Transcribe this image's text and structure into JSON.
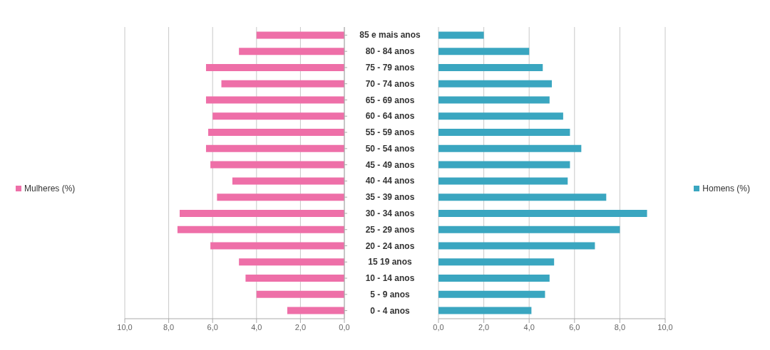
{
  "chart_data": [
    {
      "type": "bar",
      "orientation": "horizontal",
      "categories": [
        "85 e mais anos",
        "80 - 84 anos",
        "75 - 79 anos",
        "70 - 74 anos",
        "65 - 69 anos",
        "60 - 64 anos",
        "55 - 59 anos",
        "50 - 54 anos",
        "45 - 49 anos",
        "40 - 44 anos",
        "35 - 39 anos",
        "30 - 34 anos",
        "25 - 29 anos",
        "20 - 24 anos",
        "15   19 anos",
        "10 - 14 anos",
        "5 - 9 anos",
        "0 - 4 anos"
      ],
      "series": [
        {
          "name": "Mulheres (%)",
          "color": "#ee6fa8",
          "values": [
            4.0,
            4.8,
            6.3,
            5.6,
            6.3,
            6.0,
            6.2,
            6.3,
            6.1,
            5.1,
            5.8,
            7.5,
            7.6,
            6.1,
            4.8,
            4.5,
            4.0,
            2.6
          ]
        }
      ],
      "xlim": [
        10,
        0
      ],
      "xticks": [
        {
          "value": 10,
          "label": "10,0"
        },
        {
          "value": 8,
          "label": "8,0"
        },
        {
          "value": 6,
          "label": "6,0"
        },
        {
          "value": 4,
          "label": "4,0"
        },
        {
          "value": 2,
          "label": "2,0"
        },
        {
          "value": 0,
          "label": "0,0"
        }
      ],
      "grid": "x",
      "legend": "left"
    },
    {
      "type": "bar",
      "orientation": "horizontal",
      "categories": [
        null,
        null,
        null,
        null,
        null,
        null,
        null,
        null,
        null,
        null,
        null,
        null,
        null,
        null,
        null,
        null,
        null,
        null
      ],
      "series": [
        {
          "name": "Homens (%)",
          "color": "#3aa6c0",
          "values": [
            2.0,
            4.0,
            4.6,
            5.0,
            4.9,
            5.5,
            5.8,
            6.3,
            5.8,
            5.7,
            7.4,
            9.2,
            8.0,
            6.9,
            5.1,
            4.9,
            4.7,
            4.1
          ]
        }
      ],
      "xlim": [
        0,
        10
      ],
      "xticks": [
        {
          "value": 0,
          "label": "0,0"
        },
        {
          "value": 2,
          "label": "2,0"
        },
        {
          "value": 4,
          "label": "4,0"
        },
        {
          "value": 6,
          "label": "6,0"
        },
        {
          "value": 8,
          "label": "8,0"
        },
        {
          "value": 10,
          "label": "10,0"
        }
      ],
      "grid": "x",
      "legend": "right",
      "tick_labels": "x"
    }
  ]
}
